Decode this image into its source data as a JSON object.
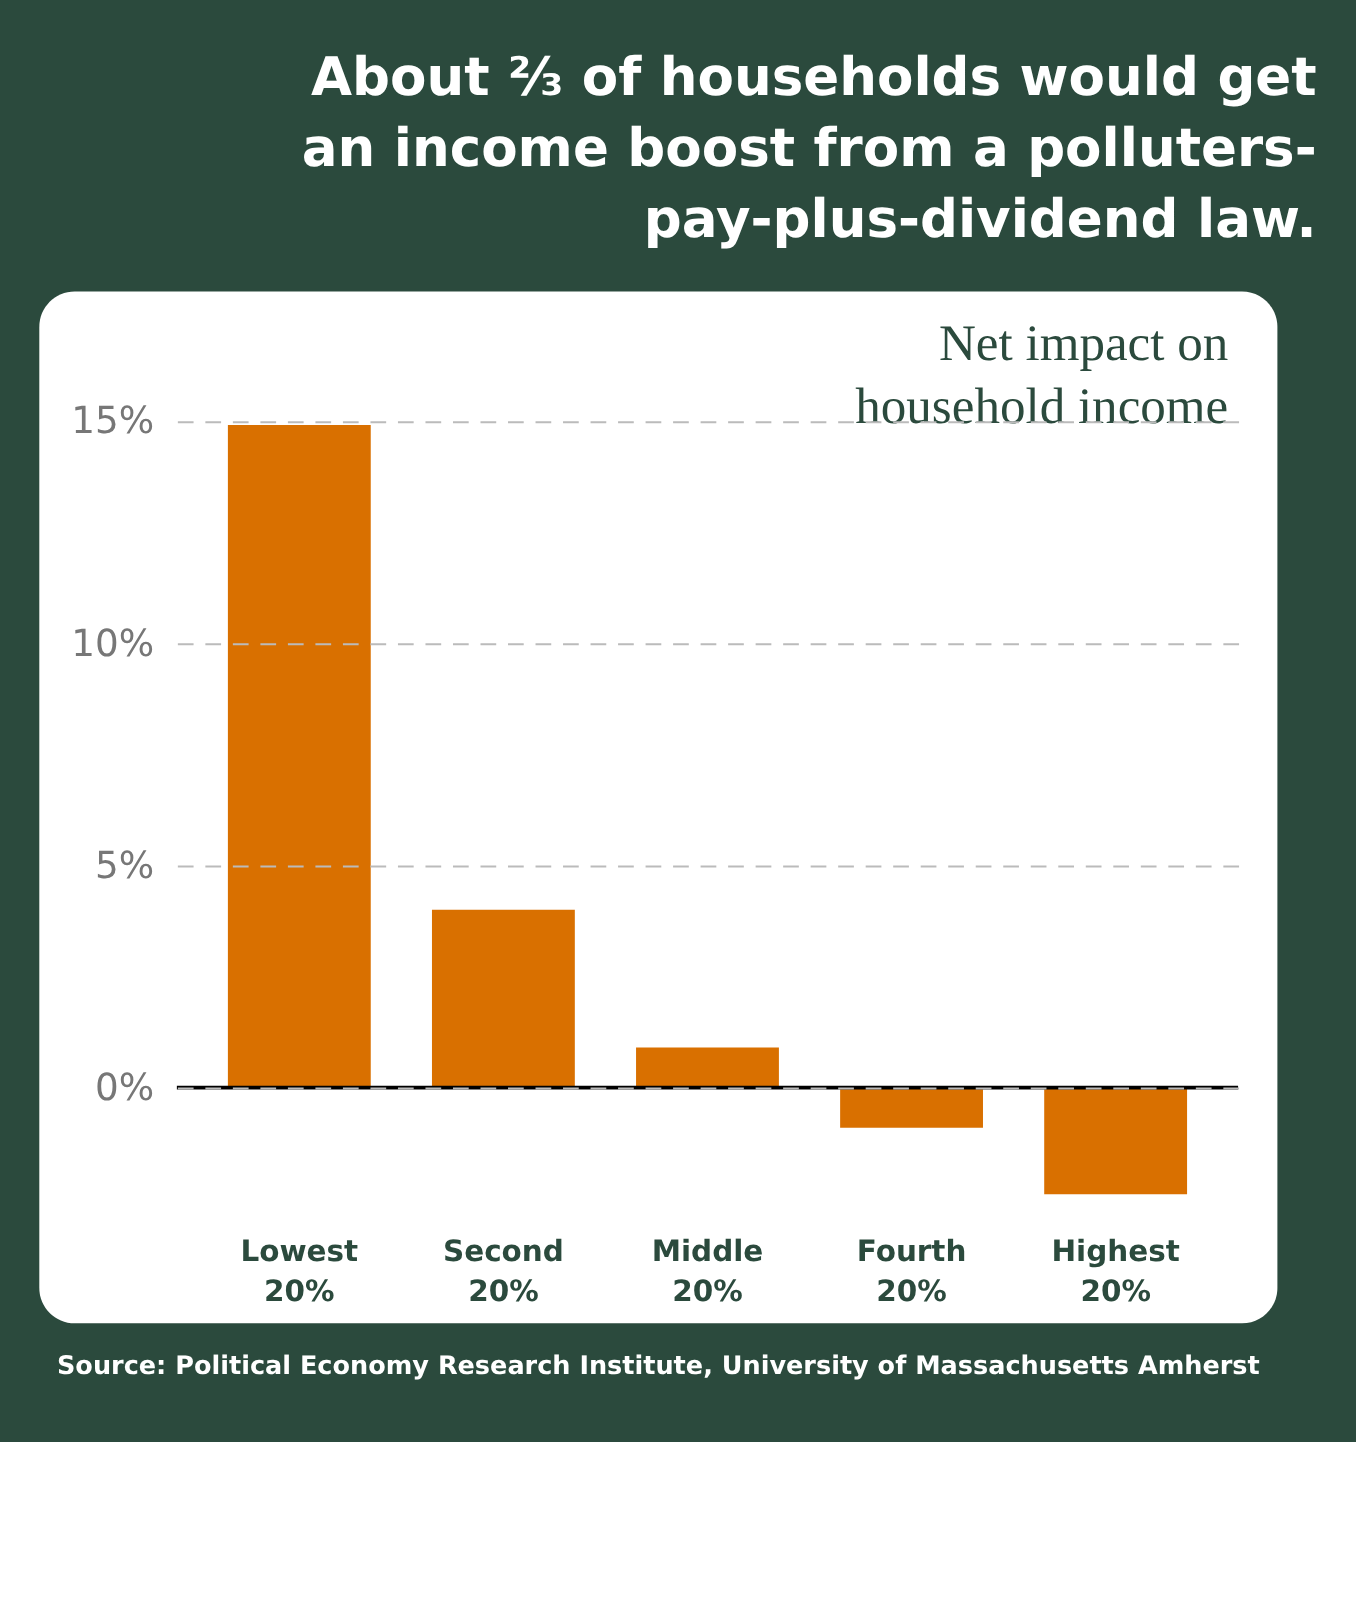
{
  "chart_data": {
    "type": "bar",
    "title": "About ²⁄₃ of households would get\nan income boost from a polluters-\npay-plus-dividend law.",
    "subtitle": "Net impact on\nhousehold income",
    "categories": [
      "Lowest 20%",
      "Second 20%",
      "Middle 20%",
      "Fourth 20%",
      "Highest 20%"
    ],
    "values": [
      14.9,
      4.0,
      0.9,
      -0.9,
      -2.4
    ],
    "color": "#d97000",
    "ylim": [
      -5.3,
      17.9
    ],
    "yticks": [
      {
        "value": 0,
        "label": "0%"
      },
      {
        "value": 5,
        "label": "5%"
      },
      {
        "value": 10,
        "label": "10%"
      },
      {
        "value": 15,
        "label": "15%"
      }
    ],
    "grid": "y",
    "ref_lines": [
      {
        "axis": "y",
        "value": 0,
        "color": "#000000"
      }
    ],
    "annotations": [
      "Source: Political Economy Research Institute, University of Massachusetts Amherst"
    ]
  }
}
